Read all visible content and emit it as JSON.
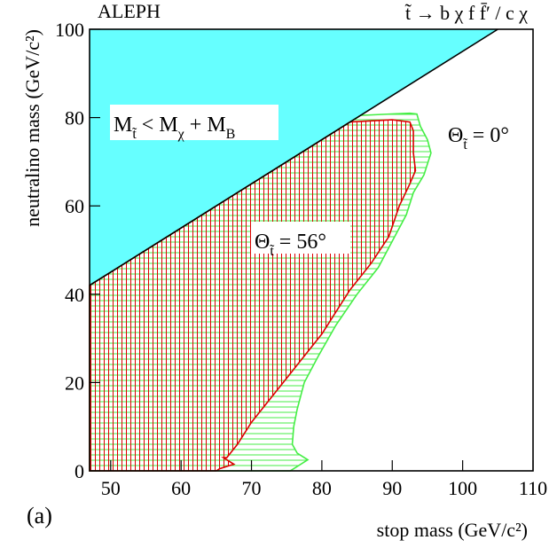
{
  "chart_data": {
    "type": "contour",
    "title": "ALEPH",
    "subtitle": "t̃ → b χ f f̄′ / c χ",
    "panel_label": "(a)",
    "x_label": "stop mass (GeV/c²)",
    "y_label": "neutralino mass (GeV/c²)",
    "xlim": [
      47,
      110
    ],
    "xticks": [
      50,
      60,
      70,
      80,
      90,
      100,
      110
    ],
    "ylim": [
      0,
      100
    ],
    "yticks": [
      0,
      20,
      40,
      60,
      80,
      100
    ],
    "series": [
      {
        "color": "#66ffff",
        "fill": true,
        "x": [
          47,
          105,
          47
        ],
        "y": [
          42,
          100,
          100
        ]
      },
      {
        "color": "#44ee44",
        "hatch": "horizontal",
        "x": [
          47,
          47,
          85.5,
          92.5,
          93.5,
          94,
          95,
          95.5,
          94.5,
          93,
          92,
          90,
          88,
          85,
          82,
          79.5,
          77.5,
          76.5,
          76,
          75.8,
          76.5,
          78,
          76,
          75.5
        ],
        "y": [
          0,
          42,
          80.5,
          81,
          80.8,
          78,
          75,
          72,
          67,
          63,
          58,
          52,
          46,
          40,
          33,
          26,
          20,
          14,
          10,
          6,
          4,
          2.5,
          0.5,
          0
        ]
      },
      {
        "color": "#dd0000",
        "hatch": "vertical",
        "x": [
          47,
          47,
          84,
          90,
          92.5,
          93,
          93,
          93.3,
          92.5,
          91,
          89.5,
          87,
          84,
          80,
          76,
          73,
          70,
          68,
          66.5,
          66,
          67.5,
          65.5,
          65
        ],
        "y": [
          0,
          42,
          79,
          79.5,
          79,
          77,
          72,
          68,
          65,
          60,
          53,
          47,
          41,
          31,
          23,
          17,
          11,
          6,
          3,
          3,
          1.5,
          0.5,
          0
        ]
      },
      {
        "color": "#000000",
        "x": [
          47,
          105
        ],
        "y": [
          42,
          100
        ]
      }
    ],
    "annotations": [
      [
        "M",
        "t̃",
        " < M",
        "χ",
        " + M",
        "B"
      ],
      [
        "Θ",
        "t̃",
        " = 56°"
      ],
      [
        "Θ",
        "t̃",
        " = 0°"
      ]
    ]
  }
}
